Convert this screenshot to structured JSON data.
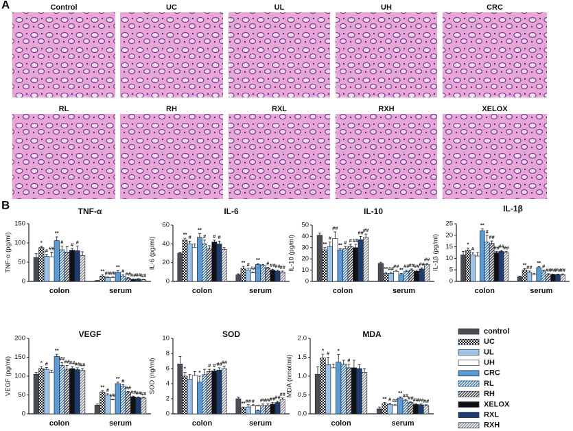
{
  "panel_a": {
    "label": "A",
    "images": [
      "Control",
      "UC",
      "UL",
      "UH",
      "CRC",
      "RL",
      "RH",
      "RXL",
      "RXH",
      "XELOX"
    ]
  },
  "panel_b": {
    "label": "B"
  },
  "legend": {
    "entries": [
      {
        "name": "control",
        "color": "#4d4d4d"
      },
      {
        "name": "UC",
        "color": "#1a1a1a",
        "pattern": "checker"
      },
      {
        "name": "UL",
        "color": "#9dc3e6"
      },
      {
        "name": "UH",
        "color": "#ffffff"
      },
      {
        "name": "CRC",
        "color": "#5b9bd5"
      },
      {
        "name": "RL",
        "color": "#2e75b6",
        "pattern": "hatch"
      },
      {
        "name": "RH",
        "color": "#333333",
        "pattern": "hatch"
      },
      {
        "name": "XELOX",
        "color": "#111111"
      },
      {
        "name": "RXL",
        "color": "#1f3c6e"
      },
      {
        "name": "RXH",
        "color": "#8c8c8c",
        "pattern": "hatch"
      }
    ]
  },
  "chart_data": [
    {
      "type": "bar",
      "title": "TNF-α",
      "y_label": "TNF-α (pg/ml)",
      "categories": [
        "colon",
        "serum"
      ],
      "ylim": [
        0,
        150
      ],
      "yticks": [
        0,
        50,
        100,
        150
      ],
      "series": [
        {
          "values": [
            62,
            2
          ],
          "errors": [
            10,
            0.5
          ],
          "annotations": [
            null,
            null
          ]
        },
        {
          "values": [
            88,
            14
          ],
          "errors": [
            3,
            3
          ],
          "annotations": [
            "*",
            "**"
          ]
        },
        {
          "values": [
            65,
            10
          ],
          "errors": [
            5,
            2
          ],
          "annotations": [
            "#",
            "##"
          ]
        },
        {
          "values": [
            64,
            10
          ],
          "errors": [
            12,
            2
          ],
          "annotations": [
            "##",
            "##"
          ]
        },
        {
          "values": [
            106,
            24
          ],
          "errors": [
            10,
            4
          ],
          "annotations": [
            "**",
            "**"
          ]
        },
        {
          "values": [
            82,
            14
          ],
          "errors": [
            10,
            3
          ],
          "annotations": [
            "#",
            "#"
          ]
        },
        {
          "values": [
            76,
            8
          ],
          "errors": [
            14,
            2
          ],
          "annotations": [
            null,
            "##"
          ]
        },
        {
          "values": [
            81,
            5
          ],
          "errors": [
            5,
            1
          ],
          "annotations": [
            "#",
            "##"
          ]
        },
        {
          "values": [
            80,
            6
          ],
          "errors": [
            12,
            1
          ],
          "annotations": [
            "#",
            "##"
          ]
        },
        {
          "values": [
            67,
            4
          ],
          "errors": [
            10,
            1
          ],
          "annotations": [
            null,
            "##"
          ]
        }
      ]
    },
    {
      "type": "bar",
      "title": "IL-6",
      "y_label": "IL-6 (pg/ml)",
      "categories": [
        "colon",
        "serum"
      ],
      "ylim": [
        0,
        60
      ],
      "yticks": [
        0,
        20,
        40,
        60
      ],
      "series": [
        {
          "values": [
            30,
            7
          ],
          "errors": [
            1,
            1
          ],
          "annotations": [
            null,
            null
          ]
        },
        {
          "values": [
            44,
            14
          ],
          "errors": [
            2,
            2
          ],
          "annotations": [
            "**",
            "**"
          ]
        },
        {
          "values": [
            40,
            12
          ],
          "errors": [
            3,
            2
          ],
          "annotations": [
            "#",
            "#"
          ]
        },
        {
          "values": [
            36,
            9
          ],
          "errors": [
            4,
            1
          ],
          "annotations": [
            null,
            "##"
          ]
        },
        {
          "values": [
            47,
            18
          ],
          "errors": [
            4,
            1
          ],
          "annotations": [
            "**",
            "**"
          ]
        },
        {
          "values": [
            40,
            17
          ],
          "errors": [
            4,
            1
          ],
          "annotations": [
            "#",
            null
          ]
        },
        {
          "values": [
            35,
            14
          ],
          "errors": [
            3,
            1
          ],
          "annotations": [
            null,
            "#"
          ]
        },
        {
          "values": [
            42,
            12
          ],
          "errors": [
            2,
            1
          ],
          "annotations": [
            "#",
            "##"
          ]
        },
        {
          "values": [
            40,
            11
          ],
          "errors": [
            3,
            1
          ],
          "annotations": [
            "#",
            "##"
          ]
        },
        {
          "values": [
            34,
            10
          ],
          "errors": [
            2,
            1
          ],
          "annotations": [
            null,
            "##"
          ]
        }
      ]
    },
    {
      "type": "bar",
      "title": "IL-10",
      "y_label": "IL-10 (pg/ml)",
      "categories": [
        "colon",
        "serum"
      ],
      "ylim": [
        0,
        50
      ],
      "yticks": [
        0,
        10,
        20,
        30,
        40,
        50
      ],
      "series": [
        {
          "values": [
            41,
            16
          ],
          "errors": [
            2,
            1
          ],
          "annotations": [
            null,
            null
          ]
        },
        {
          "values": [
            28,
            7
          ],
          "errors": [
            2,
            1
          ],
          "annotations": [
            "**",
            "**"
          ]
        },
        {
          "values": [
            31,
            7
          ],
          "errors": [
            4,
            1
          ],
          "annotations": [
            "#",
            "##"
          ]
        },
        {
          "values": [
            38,
            9
          ],
          "errors": [
            6,
            1
          ],
          "annotations": [
            "##",
            "##"
          ]
        },
        {
          "values": [
            28,
            6
          ],
          "errors": [
            1,
            1
          ],
          "annotations": [
            "**",
            "**"
          ]
        },
        {
          "values": [
            29,
            9
          ],
          "errors": [
            2,
            1
          ],
          "annotations": [
            "#",
            "##"
          ]
        },
        {
          "values": [
            31,
            10
          ],
          "errors": [
            2,
            1
          ],
          "annotations": [
            "#",
            "##"
          ]
        },
        {
          "values": [
            30,
            9
          ],
          "errors": [
            3,
            1
          ],
          "annotations": [
            "##",
            "##"
          ]
        },
        {
          "values": [
            37,
            11
          ],
          "errors": [
            3,
            1
          ],
          "annotations": [
            "##",
            "##"
          ]
        },
        {
          "values": [
            39,
            15
          ],
          "errors": [
            3,
            1
          ],
          "annotations": [
            "##",
            "##"
          ]
        }
      ]
    },
    {
      "type": "bar",
      "title": "IL-1β",
      "y_label": "IL-1β (pg/ml)",
      "categories": [
        "colon",
        "serum"
      ],
      "ylim": [
        0,
        25
      ],
      "yticks": [
        0,
        5,
        10,
        15,
        20,
        25
      ],
      "series": [
        {
          "values": [
            11.5,
            2
          ],
          "errors": [
            1.5,
            0.3
          ],
          "annotations": [
            null,
            null
          ]
        },
        {
          "values": [
            13.5,
            5
          ],
          "errors": [
            1,
            0.5
          ],
          "annotations": [
            "*",
            "**"
          ]
        },
        {
          "values": [
            11.5,
            4
          ],
          "errors": [
            1,
            0.5
          ],
          "annotations": [
            "#",
            "##"
          ]
        },
        {
          "values": [
            11,
            3
          ],
          "errors": [
            1.5,
            0.5
          ],
          "annotations": [
            null,
            null
          ]
        },
        {
          "values": [
            22,
            6
          ],
          "errors": [
            0.8,
            0.4
          ],
          "annotations": [
            "**",
            "**"
          ]
        },
        {
          "values": [
            17,
            4.5
          ],
          "errors": [
            3,
            0.4
          ],
          "annotations": [
            "#",
            "#"
          ]
        },
        {
          "values": [
            16.5,
            3
          ],
          "errors": [
            1,
            0.3
          ],
          "annotations": [
            "##",
            "##"
          ]
        },
        {
          "values": [
            12.5,
            3
          ],
          "errors": [
            0.5,
            0.2
          ],
          "annotations": [
            "##",
            "##"
          ]
        },
        {
          "values": [
            13,
            3
          ],
          "errors": [
            0.5,
            0.2
          ],
          "annotations": [
            "##",
            "##"
          ]
        },
        {
          "values": [
            12.5,
            3
          ],
          "errors": [
            0.5,
            0.2
          ],
          "annotations": [
            "##",
            "##"
          ]
        }
      ]
    },
    {
      "type": "bar",
      "title": "VEGF",
      "y_label": "VEGF (pg/ml)",
      "categories": [
        "colon",
        "serum"
      ],
      "ylim": [
        0,
        200
      ],
      "yticks": [
        0,
        50,
        100,
        150,
        200
      ],
      "series": [
        {
          "values": [
            105,
            23
          ],
          "errors": [
            5,
            3
          ],
          "annotations": [
            null,
            null
          ]
        },
        {
          "values": [
            120,
            58
          ],
          "errors": [
            5,
            3
          ],
          "annotations": [
            "*",
            "**"
          ]
        },
        {
          "values": [
            118,
            50
          ],
          "errors": [
            5,
            3
          ],
          "annotations": [
            "#",
            "#"
          ]
        },
        {
          "values": [
            110,
            37
          ],
          "errors": [
            5,
            2
          ],
          "annotations": [
            null,
            "##"
          ]
        },
        {
          "values": [
            152,
            80
          ],
          "errors": [
            6,
            4
          ],
          "annotations": [
            "**",
            "**"
          ]
        },
        {
          "values": [
            128,
            73
          ],
          "errors": [
            8,
            4
          ],
          "annotations": [
            "##",
            "#"
          ]
        },
        {
          "values": [
            118,
            57
          ],
          "errors": [
            10,
            2
          ],
          "annotations": [
            "##",
            "##"
          ]
        },
        {
          "values": [
            120,
            45
          ],
          "errors": [
            5,
            2
          ],
          "annotations": [
            "##",
            "##"
          ]
        },
        {
          "values": [
            117,
            43
          ],
          "errors": [
            5,
            2
          ],
          "annotations": [
            "##",
            "##"
          ]
        },
        {
          "values": [
            115,
            42
          ],
          "errors": [
            5,
            2
          ],
          "annotations": [
            "##",
            "##"
          ]
        }
      ]
    },
    {
      "type": "bar",
      "title": "SOD",
      "y_label": "SOD (ng/ml)",
      "categories": [
        "colon",
        "serum"
      ],
      "ylim": [
        0,
        10
      ],
      "yticks": [
        0,
        2,
        4,
        6,
        8,
        10
      ],
      "series": [
        {
          "values": [
            6.6,
            2.0
          ],
          "errors": [
            1,
            0.2
          ],
          "annotations": [
            null,
            null
          ]
        },
        {
          "values": [
            5.0,
            0.8
          ],
          "errors": [
            0.5,
            0.1
          ],
          "annotations": [
            "*",
            "**"
          ]
        },
        {
          "values": [
            4.6,
            0.9
          ],
          "errors": [
            0.6,
            0.3
          ],
          "annotations": [
            null,
            "##"
          ]
        },
        {
          "values": [
            5.1,
            1.1
          ],
          "errors": [
            0.5,
            0.1
          ],
          "annotations": [
            null,
            "#"
          ]
        },
        {
          "values": [
            4.2,
            0.4
          ],
          "errors": [
            0.8,
            0.1
          ],
          "annotations": [
            "*",
            "**"
          ]
        },
        {
          "values": [
            5.2,
            1.1
          ],
          "errors": [
            0.7,
            0.2
          ],
          "annotations": [
            null,
            "##"
          ]
        },
        {
          "values": [
            5.6,
            1.1
          ],
          "errors": [
            0.3,
            0.2
          ],
          "annotations": [
            "#",
            "##"
          ]
        },
        {
          "values": [
            5.7,
            1.3
          ],
          "errors": [
            0.2,
            0.2
          ],
          "annotations": [
            "#",
            "##"
          ]
        },
        {
          "values": [
            5.8,
            1.5
          ],
          "errors": [
            0.3,
            0.2
          ],
          "annotations": [
            "##",
            "##"
          ]
        },
        {
          "values": [
            6.0,
            1.9
          ],
          "errors": [
            0.3,
            0.2
          ],
          "annotations": [
            "##",
            "##"
          ]
        }
      ]
    },
    {
      "type": "bar",
      "title": "MDA",
      "y_label": "MDA (nmol/ml)",
      "categories": [
        "colon",
        "serum"
      ],
      "ylim": [
        0,
        2
      ],
      "yticks": [
        {
          "value": 0,
          "label": "0.0"
        },
        0.5,
        {
          "value": 1,
          "label": "1.0"
        },
        1.5,
        {
          "value": 2,
          "label": "2.0"
        }
      ],
      "series": [
        {
          "values": [
            1.05,
            0.13
          ],
          "errors": [
            0.2,
            0.05
          ],
          "annotations": [
            null,
            null
          ]
        },
        {
          "values": [
            1.48,
            0.27
          ],
          "errors": [
            0.1,
            0.03
          ],
          "annotations": [
            "*",
            "**"
          ]
        },
        {
          "values": [
            1.3,
            0.25
          ],
          "errors": [
            0.2,
            0.03
          ],
          "annotations": [
            "#",
            "#"
          ]
        },
        {
          "values": [
            1.22,
            0.22
          ],
          "errors": [
            0.1,
            0.03
          ],
          "annotations": [
            null,
            "##"
          ]
        },
        {
          "values": [
            1.37,
            0.42
          ],
          "errors": [
            0.2,
            0.03
          ],
          "annotations": [
            "*",
            "**"
          ]
        },
        {
          "values": [
            1.32,
            0.35
          ],
          "errors": [
            0.1,
            0.03
          ],
          "annotations": [
            null,
            "##"
          ]
        },
        {
          "values": [
            1.22,
            0.3
          ],
          "errors": [
            0.1,
            0.02
          ],
          "annotations": [
            "#",
            "##"
          ]
        },
        {
          "values": [
            1.22,
            0.25
          ],
          "errors": [
            0.2,
            0.02
          ],
          "annotations": [
            null,
            "##"
          ]
        },
        {
          "values": [
            1.2,
            0.24
          ],
          "errors": [
            0.1,
            0.02
          ],
          "annotations": [
            null,
            "##"
          ]
        },
        {
          "values": [
            1.1,
            0.22
          ],
          "errors": [
            0.1,
            0.02
          ],
          "annotations": [
            null,
            "##"
          ]
        }
      ]
    }
  ]
}
